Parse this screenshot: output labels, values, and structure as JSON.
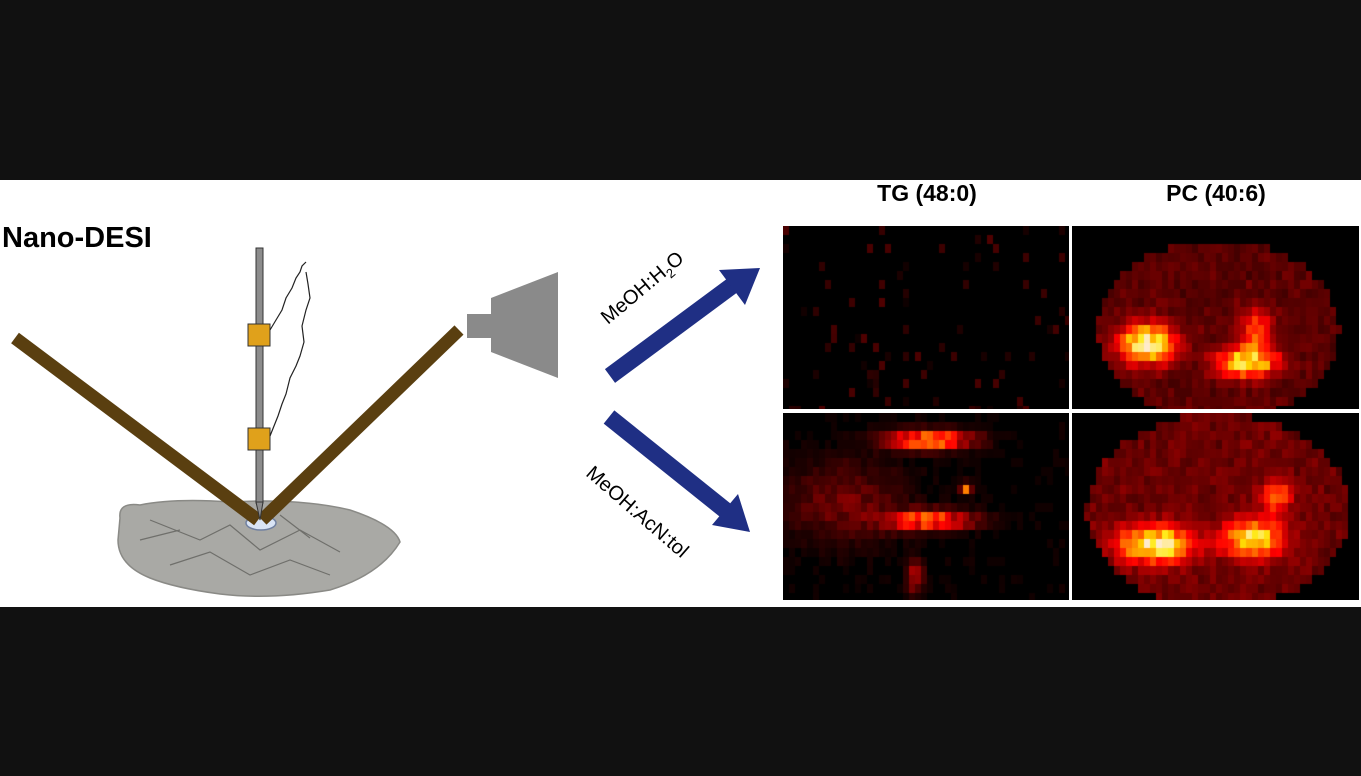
{
  "method_label": "Nano-DESI",
  "columns": [
    {
      "label": "TG (48:0)"
    },
    {
      "label": "PC (40:6)"
    }
  ],
  "solvents": {
    "top": {
      "main": "MeOH:H",
      "sub": "2",
      "tail": "O"
    },
    "bottom": {
      "text": "MeOH:AcN:tol"
    }
  },
  "colors": {
    "arrow": "#1f2f84",
    "probe_arms": "#5a3f10",
    "capillary": "#8c8c8c",
    "clamp": "#e0a11b",
    "mass_spec_inlet": "#8a8a8a",
    "figure_background": "#ffffff",
    "page_background": "#111111"
  },
  "panels": [
    {
      "id": "tg-meoh-h2o",
      "solvent": "MeOH:H2O",
      "lipid": "TG (48:0)",
      "intensity": "very low"
    },
    {
      "id": "pc-meoh-h2o",
      "solvent": "MeOH:H2O",
      "lipid": "PC (40:6)",
      "intensity": "high"
    },
    {
      "id": "tg-meoh-acn-tol",
      "solvent": "MeOH:AcN:tol",
      "lipid": "TG (48:0)",
      "intensity": "medium"
    },
    {
      "id": "pc-meoh-acn-tol",
      "solvent": "MeOH:AcN:tol",
      "lipid": "PC (40:6)",
      "intensity": "high"
    }
  ],
  "colormap": "hot"
}
